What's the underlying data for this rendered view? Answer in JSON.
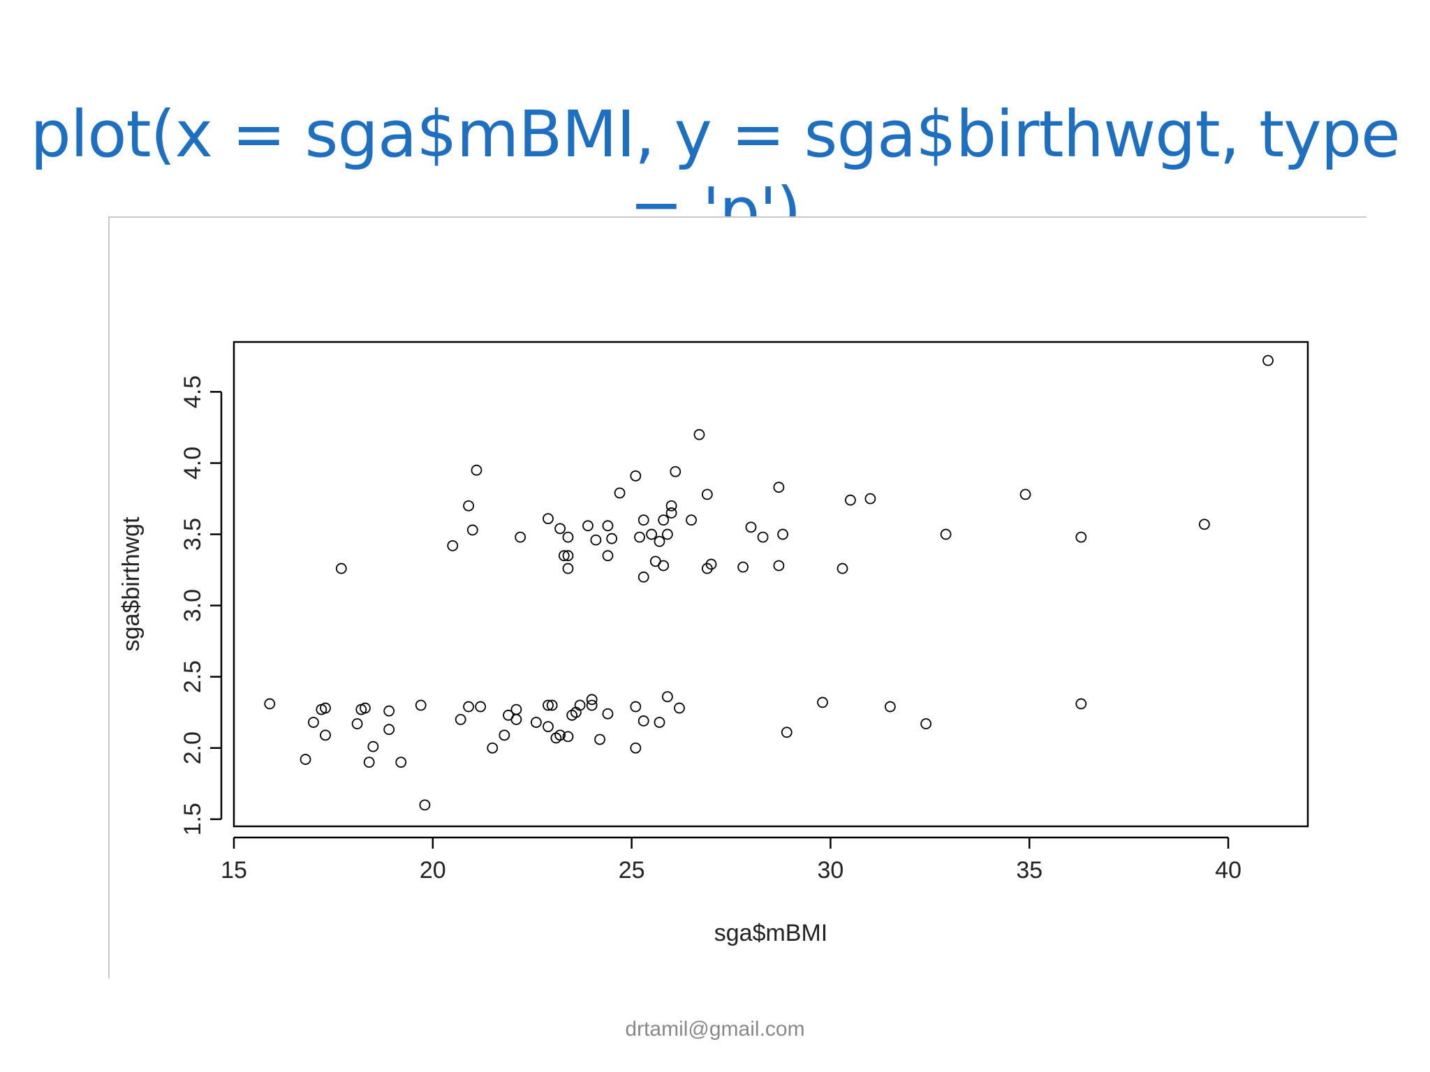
{
  "slide": {
    "title": "plot(x = sga$mBMI, y = sga$birthwgt, type = 'p')",
    "title_color": "#1f6fc0",
    "footer": "drtamil@gmail.com"
  },
  "chart_data": {
    "type": "scatter",
    "title": "",
    "xlabel": "sga$mBMI",
    "ylabel": "sga$birthwgt",
    "xlim": [
      15,
      42
    ],
    "ylim": [
      1.45,
      4.85
    ],
    "xticks": [
      15,
      20,
      25,
      30,
      35,
      40
    ],
    "yticks": [
      1.5,
      2.0,
      2.5,
      3.0,
      3.5,
      4.0,
      4.5
    ],
    "xtick_labels": [
      "15",
      "20",
      "25",
      "30",
      "35",
      "40"
    ],
    "ytick_labels": [
      "1.5",
      "2.0",
      "2.5",
      "3.0",
      "3.5",
      "4.0",
      "4.5"
    ],
    "marker": "open-circle",
    "point_color": "#000000",
    "grid": false,
    "points": [
      [
        15.9,
        2.31
      ],
      [
        16.8,
        1.92
      ],
      [
        17.0,
        2.18
      ],
      [
        17.2,
        2.27
      ],
      [
        17.3,
        2.28
      ],
      [
        17.3,
        2.09
      ],
      [
        17.7,
        3.26
      ],
      [
        18.1,
        2.17
      ],
      [
        18.2,
        2.27
      ],
      [
        18.3,
        2.28
      ],
      [
        18.4,
        1.9
      ],
      [
        18.5,
        2.01
      ],
      [
        18.9,
        2.26
      ],
      [
        18.9,
        2.13
      ],
      [
        19.2,
        1.9
      ],
      [
        19.7,
        2.3
      ],
      [
        19.8,
        1.6
      ],
      [
        20.5,
        3.42
      ],
      [
        20.7,
        2.2
      ],
      [
        20.9,
        3.7
      ],
      [
        20.9,
        2.29
      ],
      [
        21.0,
        3.53
      ],
      [
        21.1,
        3.95
      ],
      [
        21.2,
        2.29
      ],
      [
        21.5,
        2.0
      ],
      [
        21.8,
        2.09
      ],
      [
        21.9,
        2.23
      ],
      [
        22.1,
        2.27
      ],
      [
        22.1,
        2.2
      ],
      [
        22.2,
        3.48
      ],
      [
        22.6,
        2.18
      ],
      [
        22.9,
        2.3
      ],
      [
        23.0,
        2.3
      ],
      [
        22.9,
        3.61
      ],
      [
        22.9,
        2.15
      ],
      [
        23.1,
        2.07
      ],
      [
        23.2,
        3.54
      ],
      [
        23.2,
        2.09
      ],
      [
        23.3,
        3.35
      ],
      [
        23.4,
        3.35
      ],
      [
        23.4,
        3.26
      ],
      [
        23.4,
        3.48
      ],
      [
        23.4,
        2.08
      ],
      [
        23.5,
        2.23
      ],
      [
        23.6,
        2.25
      ],
      [
        23.7,
        2.3
      ],
      [
        23.9,
        3.56
      ],
      [
        24.0,
        2.34
      ],
      [
        24.0,
        2.3
      ],
      [
        24.1,
        3.46
      ],
      [
        24.2,
        2.06
      ],
      [
        24.4,
        3.56
      ],
      [
        24.4,
        3.35
      ],
      [
        24.4,
        2.24
      ],
      [
        24.5,
        3.47
      ],
      [
        24.7,
        3.79
      ],
      [
        25.1,
        3.91
      ],
      [
        25.1,
        2.0
      ],
      [
        25.1,
        2.29
      ],
      [
        25.2,
        3.48
      ],
      [
        25.3,
        3.6
      ],
      [
        25.3,
        3.2
      ],
      [
        25.3,
        2.19
      ],
      [
        25.5,
        3.5
      ],
      [
        25.6,
        3.31
      ],
      [
        25.7,
        3.45
      ],
      [
        25.7,
        2.18
      ],
      [
        25.8,
        3.6
      ],
      [
        25.8,
        3.28
      ],
      [
        25.9,
        3.5
      ],
      [
        25.9,
        2.36
      ],
      [
        26.0,
        3.7
      ],
      [
        26.0,
        3.65
      ],
      [
        26.1,
        3.94
      ],
      [
        26.2,
        2.28
      ],
      [
        26.5,
        3.6
      ],
      [
        26.7,
        4.2
      ],
      [
        26.9,
        3.78
      ],
      [
        26.9,
        3.26
      ],
      [
        27.0,
        3.29
      ],
      [
        27.8,
        3.27
      ],
      [
        28.0,
        3.55
      ],
      [
        28.3,
        3.48
      ],
      [
        28.7,
        3.83
      ],
      [
        28.7,
        3.28
      ],
      [
        28.8,
        3.5
      ],
      [
        28.9,
        2.11
      ],
      [
        29.8,
        2.32
      ],
      [
        30.3,
        3.26
      ],
      [
        30.5,
        3.74
      ],
      [
        31.0,
        3.75
      ],
      [
        31.5,
        2.29
      ],
      [
        32.4,
        2.17
      ],
      [
        32.9,
        3.5
      ],
      [
        34.9,
        3.78
      ],
      [
        36.3,
        3.48
      ],
      [
        36.3,
        2.31
      ],
      [
        39.4,
        3.57
      ],
      [
        41.0,
        4.72
      ]
    ]
  }
}
